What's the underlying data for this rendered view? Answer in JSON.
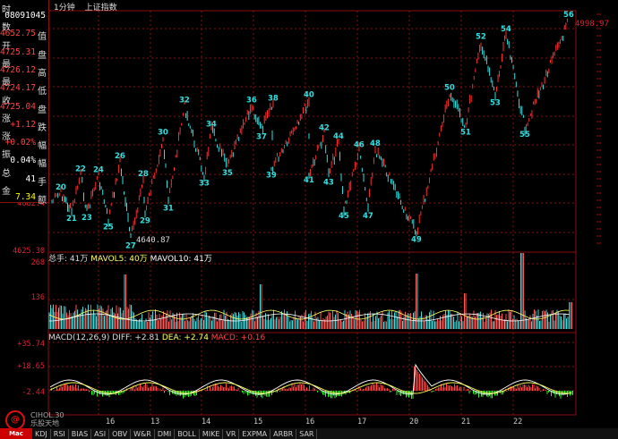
{
  "app": {
    "title": "上证指数",
    "period": "1分钟"
  },
  "info_panel": [
    {
      "key": "时",
      "value": "08091045",
      "color": "#ffffff"
    },
    {
      "key": "数 值",
      "value": "4652.75",
      "color": "#ff4444"
    },
    {
      "key": "开 盘",
      "value": "4725.31",
      "color": "#ff4444"
    },
    {
      "key": "最 高",
      "value": "4726.12",
      "color": "#ff4444"
    },
    {
      "key": "最 低",
      "value": "4724.17",
      "color": "#ff4444"
    },
    {
      "key": "收 盘",
      "value": "4725.04",
      "color": "#ff4444"
    },
    {
      "key": "涨 跌",
      "value": "+1.12",
      "color": "#ff4444"
    },
    {
      "key": "涨 幅",
      "value": "+0.02%",
      "color": "#ff4444"
    },
    {
      "key": "振 幅",
      "value": "0.04%",
      "color": "#ffffff"
    },
    {
      "key": "总 手",
      "value": "41",
      "color": "#ffffff"
    },
    {
      "key": "金 额",
      "value": "7.34",
      "color": "#ffff00"
    }
  ],
  "price_axis": {
    "top_value": "4998.97",
    "low_value": "4640.87",
    "bottom": "4625.30",
    "mid": "4682.4"
  },
  "wave_labels": [
    {
      "n": "20",
      "p": 4714
    },
    {
      "n": "21",
      "p": 4684
    },
    {
      "n": "22",
      "p": 4743
    },
    {
      "n": "23",
      "p": 4685
    },
    {
      "n": "24",
      "p": 4742
    },
    {
      "n": "25",
      "p": 4670
    },
    {
      "n": "26",
      "p": 4764
    },
    {
      "n": "27",
      "p": 4640
    },
    {
      "n": "28",
      "p": 4735
    },
    {
      "n": "29",
      "p": 4680
    },
    {
      "n": "30",
      "p": 4802
    },
    {
      "n": "31",
      "p": 4700
    },
    {
      "n": "32",
      "p": 4853
    },
    {
      "n": "33",
      "p": 4740
    },
    {
      "n": "34",
      "p": 4815
    },
    {
      "n": "35",
      "p": 4757
    },
    {
      "n": "36",
      "p": 4853
    },
    {
      "n": "37",
      "p": 4815
    },
    {
      "n": "38",
      "p": 4856
    },
    {
      "n": "39",
      "p": 4753
    },
    {
      "n": "40",
      "p": 4862
    },
    {
      "n": "41",
      "p": 4745
    },
    {
      "n": "42",
      "p": 4809
    },
    {
      "n": "43",
      "p": 4742
    },
    {
      "n": "44",
      "p": 4795
    },
    {
      "n": "45",
      "p": 4688
    },
    {
      "n": "46",
      "p": 4782
    },
    {
      "n": "47",
      "p": 4688
    },
    {
      "n": "48",
      "p": 4784
    },
    {
      "n": "49",
      "p": 4650
    },
    {
      "n": "50",
      "p": 4873
    },
    {
      "n": "51",
      "p": 4822
    },
    {
      "n": "52",
      "p": 4955
    },
    {
      "n": "53",
      "p": 4869
    },
    {
      "n": "54",
      "p": 4967
    },
    {
      "n": "55",
      "p": 4818
    },
    {
      "n": "56",
      "p": 4990
    }
  ],
  "volume": {
    "label": "总手: 41万",
    "ma5": "MAVOL5: 40万",
    "ma10": "MAVOL10: 41万",
    "axis_top": "268",
    "axis_mid": "136"
  },
  "macd": {
    "label": "MACD(12,26,9)",
    "diff": "DIFF: +2.81",
    "dea": "DEA: +2.74",
    "macd": "MACD: +0.16",
    "axis_top": "+35.74",
    "axis_mid": "+18.65",
    "axis_low": "-2.44"
  },
  "days": [
    "16",
    "13",
    "14",
    "15",
    "16",
    "17",
    "20",
    "21",
    "22"
  ],
  "tabs": [
    "KDJ",
    "RSI",
    "BIAS",
    "ASI",
    "OBV",
    "W&R",
    "DMI",
    "BOLL",
    "MIKE",
    "VR",
    "EXPMA",
    "ARBR",
    "SAR"
  ],
  "logo_text": "Mac",
  "watermark": {
    "glyph": "@",
    "line1": "CIHOL.30",
    "line2": "乐股天地"
  },
  "colors": {
    "up": "#ff3030",
    "down": "#30e0e0",
    "grid": "#8a1010",
    "axis_text": "#ff3333"
  }
}
